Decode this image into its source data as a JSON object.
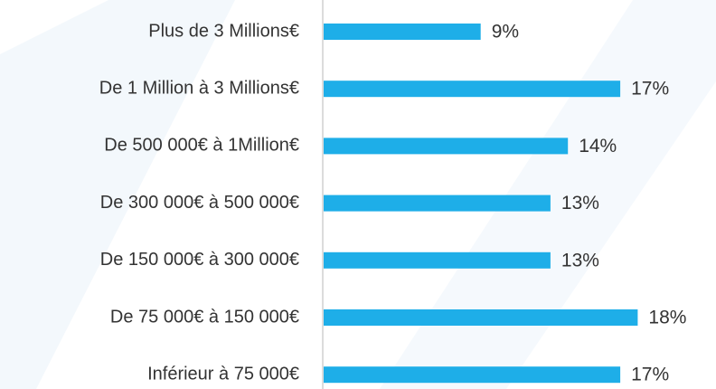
{
  "chart_data": {
    "type": "bar",
    "orientation": "horizontal",
    "categories": [
      "Plus de 3 Millions€",
      "De 1 Million à 3 Millions€",
      "De 500 000€ à 1Million€",
      "De 300 000€ à 500 000€",
      "De 150 000€ à 300 000€",
      "De 75 000€ à 150 000€",
      "Inférieur à 75 000€"
    ],
    "values": [
      9,
      17,
      14,
      13,
      13,
      18,
      17
    ],
    "value_labels": [
      "9%",
      "17%",
      "14%",
      "13%",
      "13%",
      "18%",
      "17%"
    ],
    "color": "#1eaee8"
  }
}
